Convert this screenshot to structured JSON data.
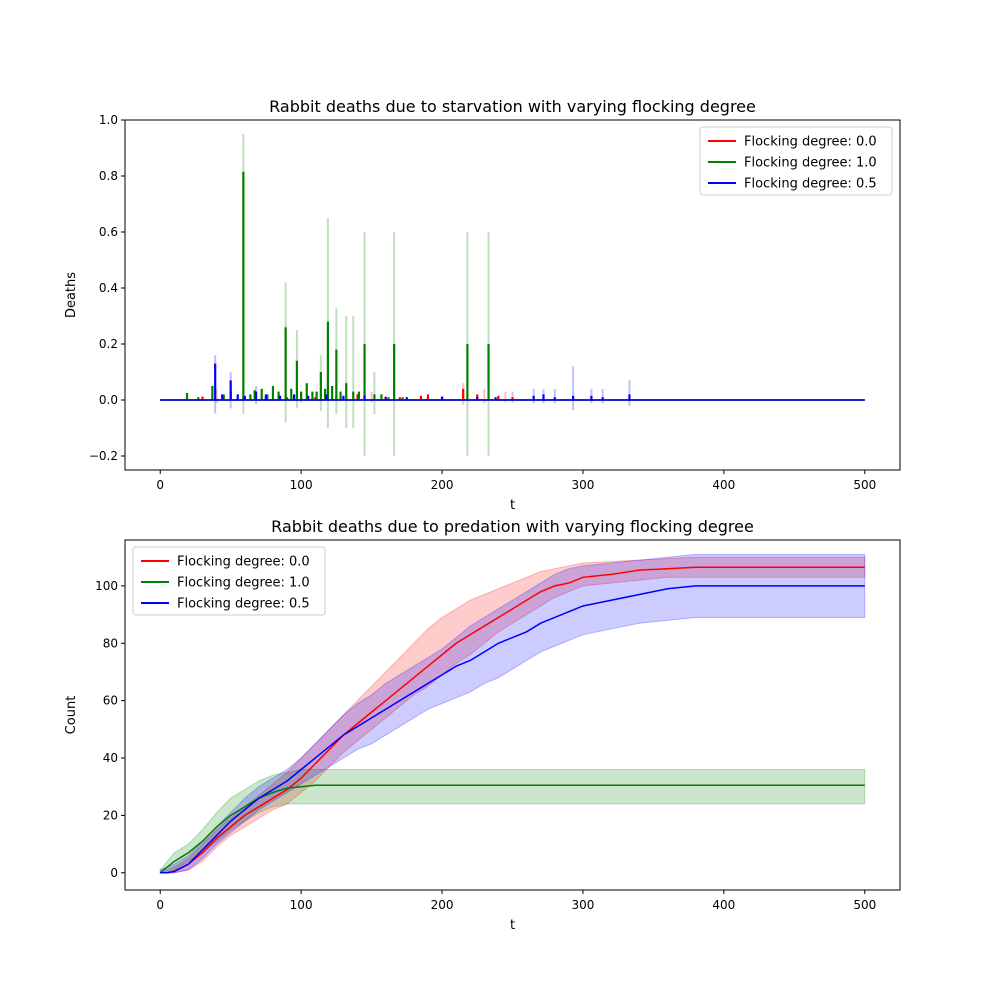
{
  "chart_data": [
    {
      "type": "line",
      "title": "Rabbit deaths due to starvation with varying flocking degree",
      "xlabel": "t",
      "ylabel": "Deaths",
      "xlim": [
        -25,
        525
      ],
      "ylim": [
        -0.25,
        1.0
      ],
      "xticks": [
        0,
        100,
        200,
        300,
        400,
        500
      ],
      "xtick_labels": [
        "0",
        "100",
        "200",
        "300",
        "400",
        "500"
      ],
      "yticks": [
        -0.2,
        0.0,
        0.2,
        0.4,
        0.6,
        0.8,
        1.0
      ],
      "ytick_labels": [
        "−0.2",
        "0.0",
        "0.2",
        "0.4",
        "0.6",
        "0.8",
        "1.0"
      ],
      "legend_position": "upper right",
      "grid": false,
      "series": [
        {
          "name": "Flocking degree: 0.0",
          "color": "#ff0000",
          "spikes": [
            [
              30,
              0.012
            ],
            [
              45,
              0.015
            ],
            [
              60,
              0.01
            ],
            [
              75,
              0.012
            ],
            [
              90,
              0.01
            ],
            [
              110,
              0.01
            ],
            [
              125,
              0.015
            ],
            [
              140,
              0.02
            ],
            [
              160,
              0.012
            ],
            [
              170,
              0.01
            ],
            [
              185,
              0.015
            ],
            [
              190,
              0.02
            ],
            [
              200,
              0.012
            ],
            [
              215,
              0.04
            ],
            [
              225,
              0.02
            ],
            [
              240,
              0.015
            ],
            [
              250,
              0.01
            ]
          ],
          "band_spikes": [
            [
              40,
              0.04
            ],
            [
              100,
              0.03
            ],
            [
              150,
              0.03
            ],
            [
              215,
              0.06
            ],
            [
              230,
              0.04
            ],
            [
              245,
              0.03
            ]
          ]
        },
        {
          "name": "Flocking degree: 1.0",
          "color": "#008000",
          "spikes": [
            [
              19,
              0.025
            ],
            [
              27,
              0.01
            ],
            [
              37,
              0.05
            ],
            [
              45,
              0.02
            ],
            [
              50,
              0.03
            ],
            [
              59,
              0.815
            ],
            [
              64,
              0.02
            ],
            [
              67,
              0.035
            ],
            [
              72,
              0.04
            ],
            [
              76,
              0.02
            ],
            [
              80,
              0.05
            ],
            [
              84,
              0.03
            ],
            [
              89,
              0.26
            ],
            [
              93,
              0.04
            ],
            [
              97,
              0.14
            ],
            [
              100,
              0.03
            ],
            [
              104,
              0.06
            ],
            [
              108,
              0.03
            ],
            [
              111,
              0.03
            ],
            [
              114,
              0.1
            ],
            [
              117,
              0.04
            ],
            [
              119,
              0.28
            ],
            [
              122,
              0.05
            ],
            [
              125,
              0.18
            ],
            [
              128,
              0.03
            ],
            [
              132,
              0.06
            ],
            [
              137,
              0.03
            ],
            [
              141,
              0.03
            ],
            [
              145,
              0.2
            ],
            [
              152,
              0.02
            ],
            [
              157,
              0.02
            ],
            [
              162,
              0.01
            ],
            [
              166,
              0.2
            ],
            [
              172,
              0.01
            ],
            [
              218,
              0.2
            ],
            [
              233,
              0.2
            ]
          ],
          "band_spikes": [
            [
              59,
              0.95,
              -0.05
            ],
            [
              89,
              0.42,
              -0.08
            ],
            [
              97,
              0.25,
              -0.03
            ],
            [
              114,
              0.16,
              -0.04
            ],
            [
              119,
              0.65,
              -0.1
            ],
            [
              125,
              0.33,
              -0.05
            ],
            [
              132,
              0.3,
              -0.1
            ],
            [
              137,
              0.3,
              -0.1
            ],
            [
              145,
              0.6,
              -0.2
            ],
            [
              152,
              0.1,
              -0.05
            ],
            [
              166,
              0.6,
              -0.2
            ],
            [
              218,
              0.6,
              -0.2
            ],
            [
              233,
              0.6,
              -0.2
            ]
          ]
        },
        {
          "name": "Flocking degree: 0.5",
          "color": "#0000ff",
          "spikes": [
            [
              39,
              0.13
            ],
            [
              44,
              0.02
            ],
            [
              50,
              0.07
            ],
            [
              55,
              0.02
            ],
            [
              60,
              0.015
            ],
            [
              68,
              0.03
            ],
            [
              75,
              0.02
            ],
            [
              85,
              0.015
            ],
            [
              95,
              0.02
            ],
            [
              105,
              0.015
            ],
            [
              118,
              0.02
            ],
            [
              130,
              0.015
            ],
            [
              145,
              0.015
            ],
            [
              160,
              0.01
            ],
            [
              175,
              0.01
            ],
            [
              200,
              0.012
            ],
            [
              225,
              0.01
            ],
            [
              238,
              0.01
            ],
            [
              265,
              0.015
            ],
            [
              272,
              0.02
            ],
            [
              280,
              0.01
            ],
            [
              293,
              0.015
            ],
            [
              306,
              0.015
            ],
            [
              314,
              0.01
            ],
            [
              333,
              0.02
            ]
          ],
          "band_spikes": [
            [
              39,
              0.16
            ],
            [
              50,
              0.1
            ],
            [
              68,
              0.05
            ],
            [
              250,
              0.03
            ],
            [
              265,
              0.04
            ],
            [
              272,
              0.04
            ],
            [
              280,
              0.04
            ],
            [
              293,
              0.12
            ],
            [
              306,
              0.04
            ],
            [
              314,
              0.04
            ],
            [
              333,
              0.07
            ]
          ]
        }
      ]
    },
    {
      "type": "line",
      "title": "Rabbit deaths due to predation with varying flocking degree",
      "xlabel": "t",
      "ylabel": "Count",
      "xlim": [
        -25,
        525
      ],
      "ylim": [
        -6,
        116
      ],
      "xticks": [
        0,
        100,
        200,
        300,
        400,
        500
      ],
      "xtick_labels": [
        "0",
        "100",
        "200",
        "300",
        "400",
        "500"
      ],
      "yticks": [
        0,
        20,
        40,
        60,
        80,
        100
      ],
      "ytick_labels": [
        "0",
        "20",
        "40",
        "60",
        "80",
        "100"
      ],
      "legend_position": "upper left",
      "grid": false,
      "series": [
        {
          "name": "Flocking degree: 0.0",
          "color": "#ff0000",
          "x": [
            0,
            5,
            10,
            20,
            30,
            40,
            50,
            60,
            70,
            80,
            90,
            100,
            110,
            120,
            130,
            140,
            150,
            160,
            170,
            180,
            190,
            200,
            210,
            220,
            230,
            240,
            250,
            260,
            270,
            280,
            290,
            300,
            320,
            340,
            360,
            380,
            400,
            500
          ],
          "mean": [
            0,
            0,
            0.5,
            3,
            7,
            12,
            16,
            20,
            23,
            26,
            29,
            33,
            38,
            43,
            48,
            52,
            56,
            60,
            64,
            68,
            72,
            76,
            80,
            83,
            86,
            89,
            92,
            95,
            98,
            100,
            101,
            103,
            104,
            105.5,
            106,
            106.5,
            106.5,
            106.5
          ],
          "lower": [
            0,
            0,
            0,
            1,
            4,
            9,
            13,
            16,
            19,
            22,
            24,
            28,
            32,
            37,
            42,
            46,
            50,
            54,
            58,
            62,
            65,
            69,
            73,
            76,
            80,
            84,
            87,
            90,
            93,
            96,
            98,
            100,
            101,
            102,
            103,
            103,
            103,
            103
          ],
          "upper": [
            0,
            1,
            2,
            5,
            10,
            15,
            19,
            23,
            27,
            31,
            35,
            40,
            45,
            50,
            55,
            60,
            65,
            70,
            75,
            80,
            85,
            89,
            92,
            95,
            97,
            99,
            101,
            103,
            105,
            106,
            107,
            108,
            108.5,
            109,
            109.5,
            110,
            110,
            110
          ]
        },
        {
          "name": "Flocking degree: 1.0",
          "color": "#008000",
          "x": [
            0,
            5,
            10,
            20,
            30,
            40,
            50,
            60,
            70,
            80,
            90,
            100,
            110,
            120,
            500
          ],
          "mean": [
            0,
            2,
            4,
            7,
            11,
            16,
            20,
            23,
            26,
            28,
            29.5,
            30,
            30.5,
            30.5,
            30.5
          ],
          "lower": [
            0,
            0,
            1,
            4,
            7,
            11,
            15,
            18,
            21,
            23,
            24,
            24,
            24,
            24,
            24
          ],
          "upper": [
            1,
            4,
            7,
            10,
            15,
            21,
            26,
            29,
            32,
            34,
            35,
            36,
            36,
            36,
            36
          ]
        },
        {
          "name": "Flocking degree: 0.5",
          "color": "#0000ff",
          "x": [
            0,
            5,
            10,
            20,
            30,
            40,
            50,
            60,
            70,
            80,
            90,
            100,
            110,
            120,
            130,
            140,
            150,
            160,
            170,
            180,
            190,
            200,
            210,
            220,
            230,
            240,
            250,
            260,
            270,
            280,
            290,
            300,
            320,
            340,
            360,
            380,
            400,
            500
          ],
          "mean": [
            0,
            0,
            0.5,
            3,
            8,
            13,
            18,
            22,
            26,
            29,
            32,
            36,
            40,
            44,
            48,
            51,
            54,
            57,
            60,
            63,
            66,
            69,
            72,
            74,
            77,
            80,
            82,
            84,
            87,
            89,
            91,
            93,
            95,
            97,
            99,
            100,
            100,
            100
          ],
          "lower": [
            0,
            0,
            0,
            1,
            5,
            10,
            14,
            18,
            22,
            25,
            28,
            31,
            34,
            37,
            40,
            43,
            45,
            48,
            51,
            54,
            57,
            59,
            61,
            63,
            66,
            68,
            71,
            74,
            77,
            79,
            81,
            83,
            85,
            87,
            88,
            89,
            89,
            89
          ],
          "upper": [
            1,
            2,
            3,
            6,
            11,
            16,
            21,
            26,
            30,
            33,
            36,
            40,
            45,
            50,
            55,
            59,
            62,
            66,
            69,
            72,
            75,
            78,
            82,
            86,
            89,
            92,
            95,
            98,
            101,
            104,
            106,
            107,
            108,
            109,
            110,
            111,
            111,
            111
          ]
        }
      ]
    }
  ]
}
